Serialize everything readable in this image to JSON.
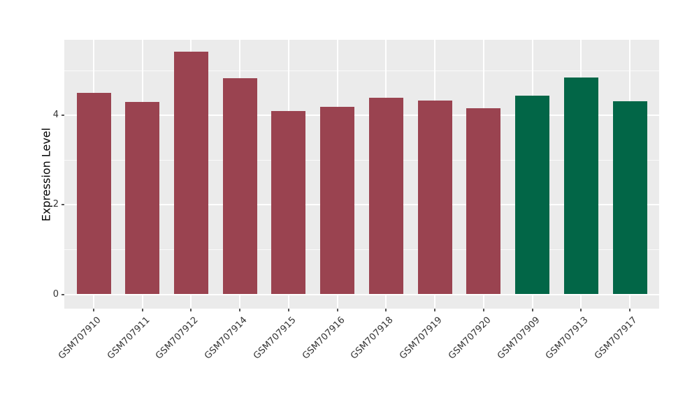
{
  "chart_data": {
    "type": "bar",
    "title": "",
    "xlabel": "",
    "ylabel": "Expression Level",
    "categories": [
      "GSM707910",
      "GSM707911",
      "GSM707912",
      "GSM707914",
      "GSM707915",
      "GSM707916",
      "GSM707918",
      "GSM707919",
      "GSM707920",
      "GSM707909",
      "GSM707913",
      "GSM707917"
    ],
    "values": [
      4.5,
      4.3,
      5.43,
      4.83,
      4.1,
      4.19,
      4.39,
      4.33,
      4.16,
      4.44,
      4.85,
      4.31
    ],
    "bar_colors": [
      "#9A4350",
      "#9A4350",
      "#9A4350",
      "#9A4350",
      "#9A4350",
      "#9A4350",
      "#9A4350",
      "#9A4350",
      "#9A4350",
      "#026647",
      "#026647",
      "#026647"
    ],
    "group_colors": {
      "maroon_group": "#9A4350",
      "green_group": "#026647"
    },
    "y_ticks": [
      0,
      2,
      4
    ],
    "y_minor_ticks": [
      1,
      3,
      5
    ],
    "ylim": [
      -0.32,
      5.69
    ],
    "grid": true,
    "legend": false,
    "panel_background": "#EBEBEB",
    "grid_color": "#FFFFFF",
    "tick_mark_color": "#555555",
    "tick_label_color": "#333333",
    "x_label_rotation_deg": 45
  }
}
